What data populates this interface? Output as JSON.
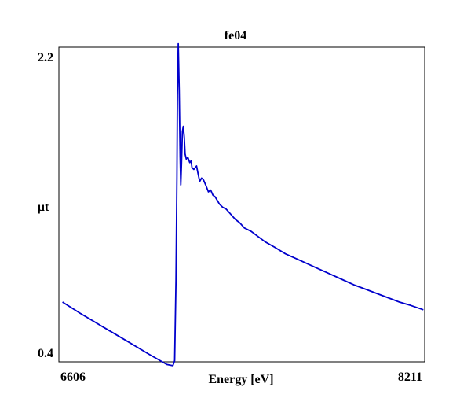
{
  "chart_data": {
    "type": "line",
    "title": "fe04",
    "xlabel": "Energy [eV]",
    "ylabel": "µt",
    "xlim": [
      6606,
      8211
    ],
    "ylim": [
      0.4,
      2.2
    ],
    "x_tick_labels": [
      "6606",
      "8211"
    ],
    "y_tick_labels": [
      "0.4",
      "2.2"
    ],
    "grid": false,
    "legend": "none",
    "line_color": "#0000cc",
    "series": [
      {
        "x": [
          6622,
          6700,
          6800,
          6900,
          7000,
          7080,
          7106,
          7114,
          7120,
          7124,
          7126,
          7130,
          7134,
          7138,
          7141,
          7144,
          7148,
          7152,
          7156,
          7160,
          7165,
          7172,
          7180,
          7186,
          7190,
          7198,
          7210,
          7216,
          7224,
          7232,
          7240,
          7250,
          7262,
          7272,
          7282,
          7292,
          7310,
          7325,
          7340,
          7360,
          7380,
          7400,
          7420,
          7450,
          7480,
          7510,
          7550,
          7600,
          7650,
          7700,
          7750,
          7800,
          7850,
          7900,
          7950,
          8000,
          8050,
          8100,
          8150,
          8205
        ],
        "y": [
          0.72,
          0.654,
          0.575,
          0.497,
          0.418,
          0.357,
          0.35,
          0.38,
          0.85,
          1.45,
          1.92,
          2.22,
          1.95,
          1.56,
          1.4,
          1.52,
          1.71,
          1.74,
          1.68,
          1.58,
          1.55,
          1.56,
          1.53,
          1.54,
          1.5,
          1.49,
          1.51,
          1.47,
          1.42,
          1.44,
          1.43,
          1.4,
          1.36,
          1.37,
          1.34,
          1.33,
          1.29,
          1.27,
          1.26,
          1.23,
          1.2,
          1.18,
          1.15,
          1.13,
          1.1,
          1.07,
          1.04,
          1.0,
          0.97,
          0.94,
          0.91,
          0.88,
          0.85,
          0.82,
          0.795,
          0.77,
          0.745,
          0.72,
          0.7,
          0.675
        ]
      }
    ]
  }
}
